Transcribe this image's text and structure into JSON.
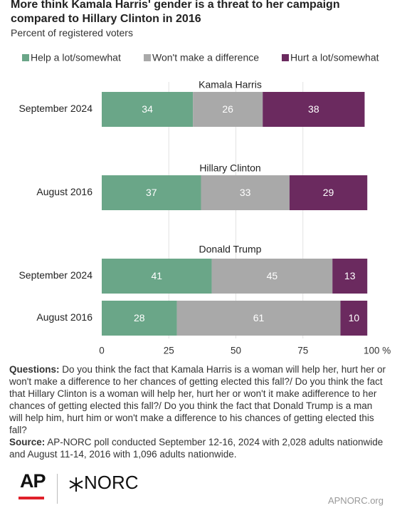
{
  "chart_data": {
    "type": "stacked-bar-horizontal",
    "title": "More think Kamala Harris' gender is a threat to her campaign compared to Hillary Clinton in 2016",
    "subtitle": "Percent of registered voters",
    "categories": [
      "September 2024",
      "August 2016",
      "September 2024",
      "August 2016"
    ],
    "groups": [
      {
        "label": "Kamala Harris",
        "size": 1
      },
      {
        "label": "Hillary Clinton",
        "size": 1
      },
      {
        "label": "Donald Trump",
        "size": 2
      }
    ],
    "series": [
      {
        "name": "Help a lot/somewhat",
        "color": "#6aa688",
        "values": [
          34,
          37,
          41,
          28
        ]
      },
      {
        "name": "Won't make a difference",
        "color": "#a9a9a9",
        "values": [
          26,
          33,
          45,
          61
        ]
      },
      {
        "name": "Hurt a lot/somewhat",
        "color": "#6b2a5f",
        "values": [
          38,
          29,
          13,
          10
        ]
      }
    ],
    "xlim": [
      0,
      100
    ],
    "xticks": [
      0,
      25,
      50,
      75,
      {
        "value": 100,
        "label": "100 %"
      }
    ],
    "grid": true,
    "legend": "top"
  },
  "notes": {
    "questions_label": "Questions:",
    "questions": "Do you think the fact that Kamala Harris is a woman will help her, hurt her or won't make a difference to her chances of getting elected this fall?/ Do you think the fact that Hillary Clinton is a woman will help her, hurt her or won't it make adifference to her chances of getting elected this fall?/ Do you think the fact that Donald Trump is a man will help him, hurt him or won't make a difference to his chances of getting elected this fall?",
    "source_label": "Source:",
    "source": "AP-NORC poll conducted September 12-16, 2024 with 2,028 adults nationwide and August 11-14, 2016 with 1,096 adults nationwide."
  },
  "footer": {
    "logo_ap": "AP",
    "logo_norc": "NORC",
    "url": "APNORC.org"
  }
}
